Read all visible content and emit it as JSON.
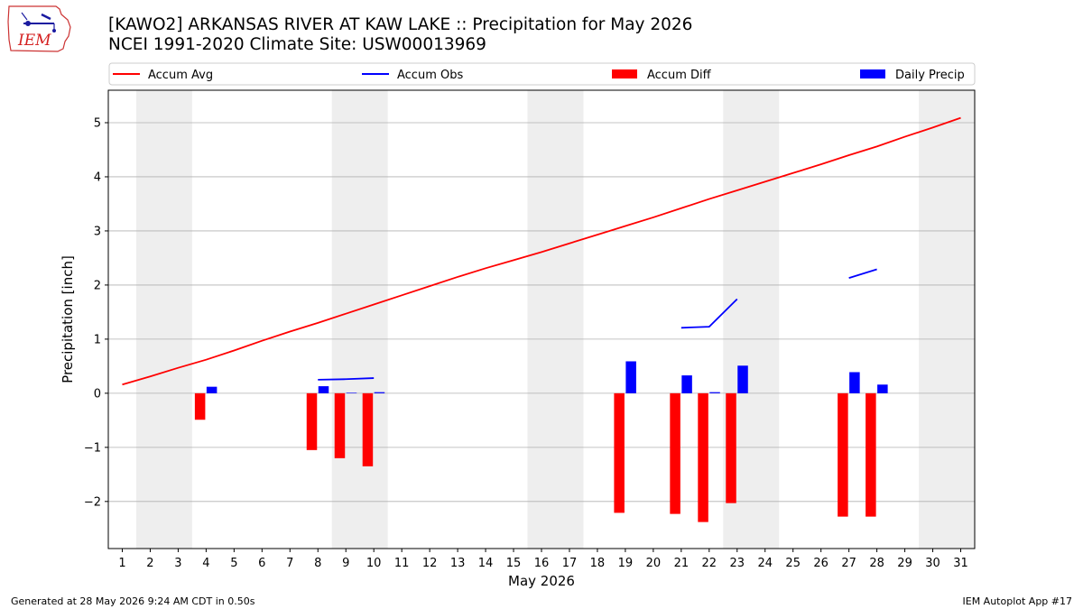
{
  "header": {
    "title_line1": "[KAWO2] ARKANSAS RIVER  AT KAW LAKE :: Precipitation for May 2026",
    "title_line2": "NCEI 1991-2020 Climate Site: USW00013969",
    "logo_text": "IEM"
  },
  "footer": {
    "generated": "Generated at 28 May 2026 9:24 AM CDT in 0.50s",
    "app": "IEM Autoplot App #17"
  },
  "colors": {
    "accum_avg": "#ff0000",
    "accum_obs": "#0000ff",
    "accum_diff": "#ff0000",
    "daily_precip": "#0000ff",
    "weekend_shade": "#eeeeee",
    "grid": "#b0b0b0"
  },
  "chart_data": {
    "type": "bar",
    "title": "[KAWO2] ARKANSAS RIVER  AT KAW LAKE :: Precipitation for May 2026",
    "subtitle": "NCEI 1991-2020 Climate Site: USW00013969",
    "xlabel": "May 2026",
    "ylabel": "Precipitation [inch]",
    "xlim": [
      0.5,
      31.5
    ],
    "ylim": [
      -2.87,
      5.6
    ],
    "x_ticks": [
      1,
      2,
      3,
      4,
      5,
      6,
      7,
      8,
      9,
      10,
      11,
      12,
      13,
      14,
      15,
      16,
      17,
      18,
      19,
      20,
      21,
      22,
      23,
      24,
      25,
      26,
      27,
      28,
      29,
      30,
      31
    ],
    "y_ticks": [
      -2,
      -1,
      0,
      1,
      2,
      3,
      4,
      5
    ],
    "y_tick_labels": [
      "−2",
      "−1",
      "0",
      "1",
      "2",
      "3",
      "4",
      "5"
    ],
    "grid": "horizontal",
    "legend": {
      "placement": "top",
      "entries": [
        {
          "label": "Accum Avg",
          "kind": "line",
          "color": "#ff0000"
        },
        {
          "label": "Accum Obs",
          "kind": "line",
          "color": "#0000ff"
        },
        {
          "label": "Accum Diff",
          "kind": "bar",
          "color": "#ff0000"
        },
        {
          "label": "Daily Precip",
          "kind": "bar",
          "color": "#0000ff"
        }
      ]
    },
    "weekend_shading": [
      [
        1.5,
        3.5
      ],
      [
        8.5,
        10.5
      ],
      [
        15.5,
        17.5
      ],
      [
        22.5,
        24.5
      ],
      [
        29.5,
        31.5
      ]
    ],
    "series": [
      {
        "name": "Accum Avg",
        "type": "line",
        "x": [
          1,
          2,
          3,
          4,
          5,
          6,
          7,
          8,
          9,
          10,
          11,
          12,
          13,
          14,
          15,
          16,
          17,
          18,
          19,
          20,
          21,
          22,
          23,
          24,
          25,
          26,
          27,
          28,
          29,
          30,
          31
        ],
        "values": [
          0.16,
          0.31,
          0.47,
          0.62,
          0.79,
          0.97,
          1.14,
          1.3,
          1.47,
          1.64,
          1.81,
          1.98,
          2.15,
          2.31,
          2.46,
          2.61,
          2.77,
          2.93,
          3.09,
          3.25,
          3.42,
          3.59,
          3.75,
          3.91,
          4.07,
          4.23,
          4.4,
          4.56,
          4.74,
          4.91,
          5.09
        ]
      },
      {
        "name": "Accum Obs",
        "type": "line",
        "segments": [
          {
            "x": [
              8,
              9,
              10
            ],
            "values": [
              0.25,
              0.26,
              0.28
            ]
          },
          {
            "x": [
              21,
              22,
              23
            ],
            "values": [
              1.21,
              1.23,
              1.74
            ]
          },
          {
            "x": [
              27,
              28
            ],
            "values": [
              2.13,
              2.29
            ]
          }
        ]
      },
      {
        "name": "Accum Diff",
        "type": "bar",
        "x": [
          4,
          8,
          9,
          10,
          19,
          21,
          22,
          23,
          27,
          28
        ],
        "values": [
          -0.49,
          -1.05,
          -1.2,
          -1.35,
          -2.21,
          -2.23,
          -2.38,
          -2.03,
          -2.28,
          -2.28
        ]
      },
      {
        "name": "Daily Precip",
        "type": "bar",
        "x": [
          4,
          8,
          9,
          10,
          19,
          21,
          22,
          23,
          27,
          28
        ],
        "values": [
          0.12,
          0.13,
          0.01,
          0.02,
          0.59,
          0.33,
          0.02,
          0.51,
          0.39,
          0.16
        ]
      }
    ]
  }
}
